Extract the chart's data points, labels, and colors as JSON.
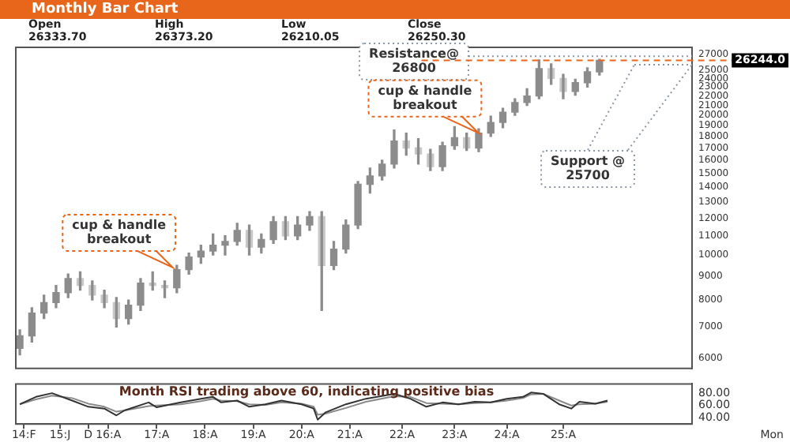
{
  "chart_data": [
    {
      "type": "candlestick",
      "title": "Monthly Bar Chart",
      "color": "#8c8c8c",
      "colors": [
        "#8c8c8c",
        "#8c8c8c",
        "#8c8c8c",
        "#8c8c8c",
        "#8c8c8c",
        "#c8c8c8",
        "#c8c8c8",
        "#c8c8c8",
        "#c8c8c8",
        "#8c8c8c",
        "#8c8c8c",
        "#c8c8c8",
        "#c8c8c8",
        "#8c8c8c",
        "#8c8c8c",
        "#8c8c8c",
        "#8c8c8c",
        "#8c8c8c",
        "#8c8c8c",
        "#c8c8c8",
        "#8c8c8c",
        "#8c8c8c",
        "#c8c8c8",
        "#8c8c8c",
        "#8c8c8c",
        "#c8c8c8",
        "#8c8c8c",
        "#8c8c8c",
        "#8c8c8c",
        "#8c8c8c",
        "#8c8c8c",
        "#8c8c8c",
        "#c8c8c8",
        "#c8c8c8",
        "#c8c8c8",
        "#8c8c8c",
        "#8c8c8c",
        "#c8c8c8",
        "#8c8c8c",
        "#8c8c8c",
        "#8c8c8c",
        "#8c8c8c",
        "#8c8c8c",
        "#8c8c8c",
        "#c8c8c8",
        "#c8c8c8",
        "#8c8c8c",
        "#8c8c8c",
        "#8c8c8c"
      ],
      "log": true,
      "ylim": [
        5700,
        28000
      ],
      "yticks": [
        6000,
        7000,
        8000,
        9000,
        10000,
        11000,
        12000,
        13000,
        14000,
        15000,
        16000,
        17000,
        18000,
        19000,
        20000,
        21000,
        22000,
        23000,
        24000,
        25000,
        27000
      ],
      "xlim": [
        "2013-12",
        "2027-12"
      ],
      "tick_labels": "y",
      "x": [
        "2014-01",
        "2014-04",
        "2014-07",
        "2014-10",
        "2015-01",
        "2015-04",
        "2015-07",
        "2015-10",
        "2016-01",
        "2016-04",
        "2016-07",
        "2016-10",
        "2017-01",
        "2017-04",
        "2017-07",
        "2017-10",
        "2018-01",
        "2018-04",
        "2018-07",
        "2018-10",
        "2019-01",
        "2019-04",
        "2019-07",
        "2019-10",
        "2020-01",
        "2020-04",
        "2020-07",
        "2020-10",
        "2021-01",
        "2021-04",
        "2021-07",
        "2021-10",
        "2022-01",
        "2022-04",
        "2022-07",
        "2022-10",
        "2023-01",
        "2023-04",
        "2023-07",
        "2023-10",
        "2024-01",
        "2024-04",
        "2024-07",
        "2024-10",
        "2025-01",
        "2025-04",
        "2025-07",
        "2025-10",
        "2026-01"
      ],
      "ohlc": [
        [
          6300,
          6900,
          6100,
          6700
        ],
        [
          6700,
          7700,
          6500,
          7500
        ],
        [
          7500,
          8200,
          7300,
          7900
        ],
        [
          7900,
          8600,
          7700,
          8300
        ],
        [
          8300,
          9100,
          8100,
          8900
        ],
        [
          8900,
          9200,
          8400,
          8600
        ],
        [
          8600,
          8800,
          8000,
          8200
        ],
        [
          8200,
          8400,
          7700,
          7900
        ],
        [
          7900,
          8100,
          7000,
          7300
        ],
        [
          7300,
          8000,
          7100,
          7800
        ],
        [
          7800,
          8900,
          7600,
          8700
        ],
        [
          8700,
          9200,
          8400,
          8600
        ],
        [
          8600,
          8800,
          8100,
          8500
        ],
        [
          8500,
          9500,
          8300,
          9300
        ],
        [
          9300,
          10100,
          9100,
          9900
        ],
        [
          9900,
          10500,
          9600,
          10200
        ],
        [
          10200,
          11100,
          10000,
          10500
        ],
        [
          10500,
          11000,
          10000,
          10700
        ],
        [
          10700,
          11700,
          10500,
          11300
        ],
        [
          11300,
          11600,
          10000,
          10400
        ],
        [
          10400,
          11100,
          10100,
          10800
        ],
        [
          10800,
          12100,
          10600,
          11800
        ],
        [
          11800,
          12100,
          10800,
          11000
        ],
        [
          11000,
          12100,
          10800,
          11600
        ],
        [
          11600,
          12400,
          11300,
          12100
        ],
        [
          12100,
          12400,
          7600,
          9500
        ],
        [
          9500,
          10700,
          9300,
          10300
        ],
        [
          10300,
          11900,
          10100,
          11600
        ],
        [
          11600,
          14400,
          11400,
          14200
        ],
        [
          14200,
          15400,
          13600,
          14800
        ],
        [
          14800,
          16000,
          14500,
          15700
        ],
        [
          15700,
          18600,
          15400,
          17600
        ],
        [
          17600,
          18300,
          16400,
          17000
        ],
        [
          17000,
          17800,
          15700,
          16500
        ],
        [
          16500,
          16900,
          15200,
          15500
        ],
        [
          15500,
          17500,
          15200,
          17200
        ],
        [
          17200,
          18900,
          16900,
          17900
        ],
        [
          17900,
          18300,
          16800,
          17000
        ],
        [
          17000,
          18700,
          16700,
          18300
        ],
        [
          18300,
          19900,
          18000,
          19300
        ],
        [
          19300,
          20700,
          18800,
          20300
        ],
        [
          20300,
          21700,
          20000,
          21300
        ],
        [
          21300,
          22800,
          21000,
          22000
        ],
        [
          22000,
          26300,
          21700,
          25200
        ],
        [
          25200,
          25800,
          23300,
          24000
        ],
        [
          24000,
          24500,
          21700,
          22500
        ],
        [
          22500,
          23900,
          22100,
          23500
        ],
        [
          23500,
          25300,
          23000,
          24800
        ],
        [
          24800,
          26400,
          24400,
          26250
        ]
      ],
      "ref_lines": [
        {
          "axis": "y",
          "value": 26800,
          "label": "Resistance@\n26800",
          "color": "#8a96a3",
          "line_style": "dotted"
        },
        {
          "axis": "y",
          "value": 26244,
          "label": "26244.0",
          "color": "#e8661c",
          "line_style": "dashed"
        },
        {
          "axis": "y",
          "value": 25700,
          "label": "Support @\n25700",
          "color": "#8a96a3",
          "line_style": "dotted"
        }
      ],
      "annotations": [
        "Open\n26333.70",
        "High\n26373.20",
        "Low\n26210.05",
        "Close\n26250.30",
        {
          "text": "cup & handle\nbreakout",
          "x": "2017-03",
          "y": 9400
        },
        {
          "text": "cup & handle\nbreakout",
          "x": "2023-07",
          "y": 18300
        }
      ]
    },
    {
      "type": "line",
      "title": "Month RSI trading above 60, indicating positive bias",
      "xlabel": "Mon",
      "xlim": [
        "2013-12",
        "2027-12"
      ],
      "ylim": [
        30,
        95
      ],
      "yticks": [
        {
          "value": 40,
          "label": "40.00"
        },
        {
          "value": 60,
          "label": "60.00"
        },
        {
          "value": 80,
          "label": "80.00"
        }
      ],
      "xticks": [
        {
          "value": "2014-02",
          "label": "14:F"
        },
        {
          "value": "2014-11",
          "label": "15:J"
        },
        {
          "value": "2015-06",
          "label": "D"
        },
        {
          "value": "2015-11",
          "label": "16:A"
        },
        {
          "value": "2016-11",
          "label": "17:A"
        },
        {
          "value": "2017-11",
          "label": "18:A"
        },
        {
          "value": "2018-11",
          "label": "19:A"
        },
        {
          "value": "2019-11",
          "label": "20:A"
        },
        {
          "value": "2020-11",
          "label": "21:A"
        },
        {
          "value": "2021-12",
          "label": "22:A"
        },
        {
          "value": "2023-01",
          "label": "23:A"
        },
        {
          "value": "2024-02",
          "label": "24:A"
        },
        {
          "value": "2025-04",
          "label": "25:A"
        }
      ],
      "x": [
        "2014-01",
        "2014-05",
        "2014-09",
        "2015-02",
        "2015-06",
        "2015-10",
        "2016-01",
        "2016-03",
        "2016-09",
        "2016-11",
        "2017-05",
        "2017-10",
        "2018-01",
        "2018-03",
        "2018-07",
        "2018-10",
        "2019-02",
        "2019-06",
        "2019-11",
        "2020-02",
        "2020-03",
        "2020-05",
        "2020-10",
        "2021-03",
        "2021-10",
        "2022-02",
        "2022-06",
        "2022-10",
        "2023-02",
        "2023-06",
        "2023-10",
        "2024-02",
        "2024-06",
        "2024-08",
        "2024-11",
        "2025-03",
        "2025-06",
        "2025-08",
        "2025-12",
        "2026-03"
      ],
      "series": [
        {
          "color": "#333333",
          "values": [
            62,
            74,
            80,
            68,
            58,
            55,
            44,
            52,
            65,
            57,
            65,
            71,
            74,
            65,
            68,
            58,
            62,
            68,
            62,
            55,
            37,
            49,
            62,
            71,
            79,
            71,
            58,
            65,
            62,
            66,
            65,
            71,
            74,
            81,
            79,
            62,
            55,
            66,
            63,
            68
          ]
        },
        {
          "color": "#8a8a8a",
          "values": [
            62,
            70,
            76,
            72,
            63,
            58,
            50,
            52,
            59,
            60,
            62,
            67,
            71,
            68,
            67,
            62,
            61,
            65,
            63,
            58,
            45,
            47,
            56,
            66,
            75,
            74,
            64,
            63,
            62,
            64,
            65,
            68,
            72,
            78,
            79,
            68,
            60,
            62,
            63,
            66
          ]
        }
      ]
    }
  ]
}
